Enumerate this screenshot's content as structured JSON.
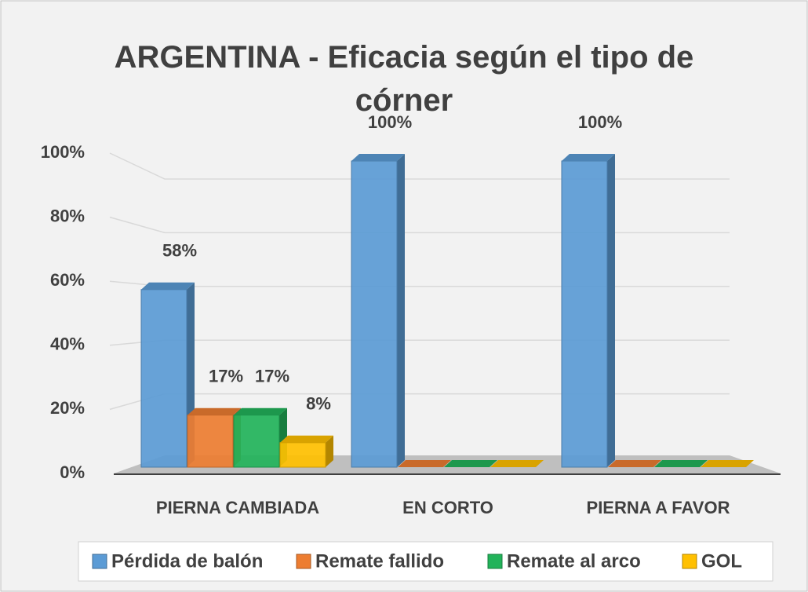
{
  "chart_data": {
    "type": "bar3d",
    "title": "ARGENTINA - Eficacia según el tipo de córner",
    "categories": [
      "PIERNA CAMBIADA",
      "EN CORTO",
      "PIERNA A FAVOR"
    ],
    "series": [
      {
        "name": "Pérdida de balón",
        "color": "#5b9bd5",
        "values": [
          58,
          100,
          100
        ],
        "value_labels": [
          "58%",
          "100%",
          "100%"
        ]
      },
      {
        "name": "Remate fallido",
        "color": "#ed7d31",
        "values": [
          17,
          0,
          0
        ],
        "value_labels": [
          "17%",
          null,
          null
        ]
      },
      {
        "name": "Remate al arco",
        "color": "#22b35a",
        "values": [
          17,
          0,
          0
        ],
        "value_labels": [
          "17%",
          null,
          null
        ]
      },
      {
        "name": "GOL",
        "color": "#ffc000",
        "values": [
          8,
          0,
          0
        ],
        "value_labels": [
          "8%",
          null,
          null
        ]
      }
    ],
    "ylim": [
      0,
      100
    ],
    "yticks": [
      {
        "value": 0,
        "label": "0%"
      },
      {
        "value": 20,
        "label": "20%"
      },
      {
        "value": 40,
        "label": "40%"
      },
      {
        "value": 60,
        "label": "60%"
      },
      {
        "value": 80,
        "label": "80%"
      },
      {
        "value": 100,
        "label": "100%"
      }
    ],
    "grid": true,
    "legend": "bottom"
  }
}
